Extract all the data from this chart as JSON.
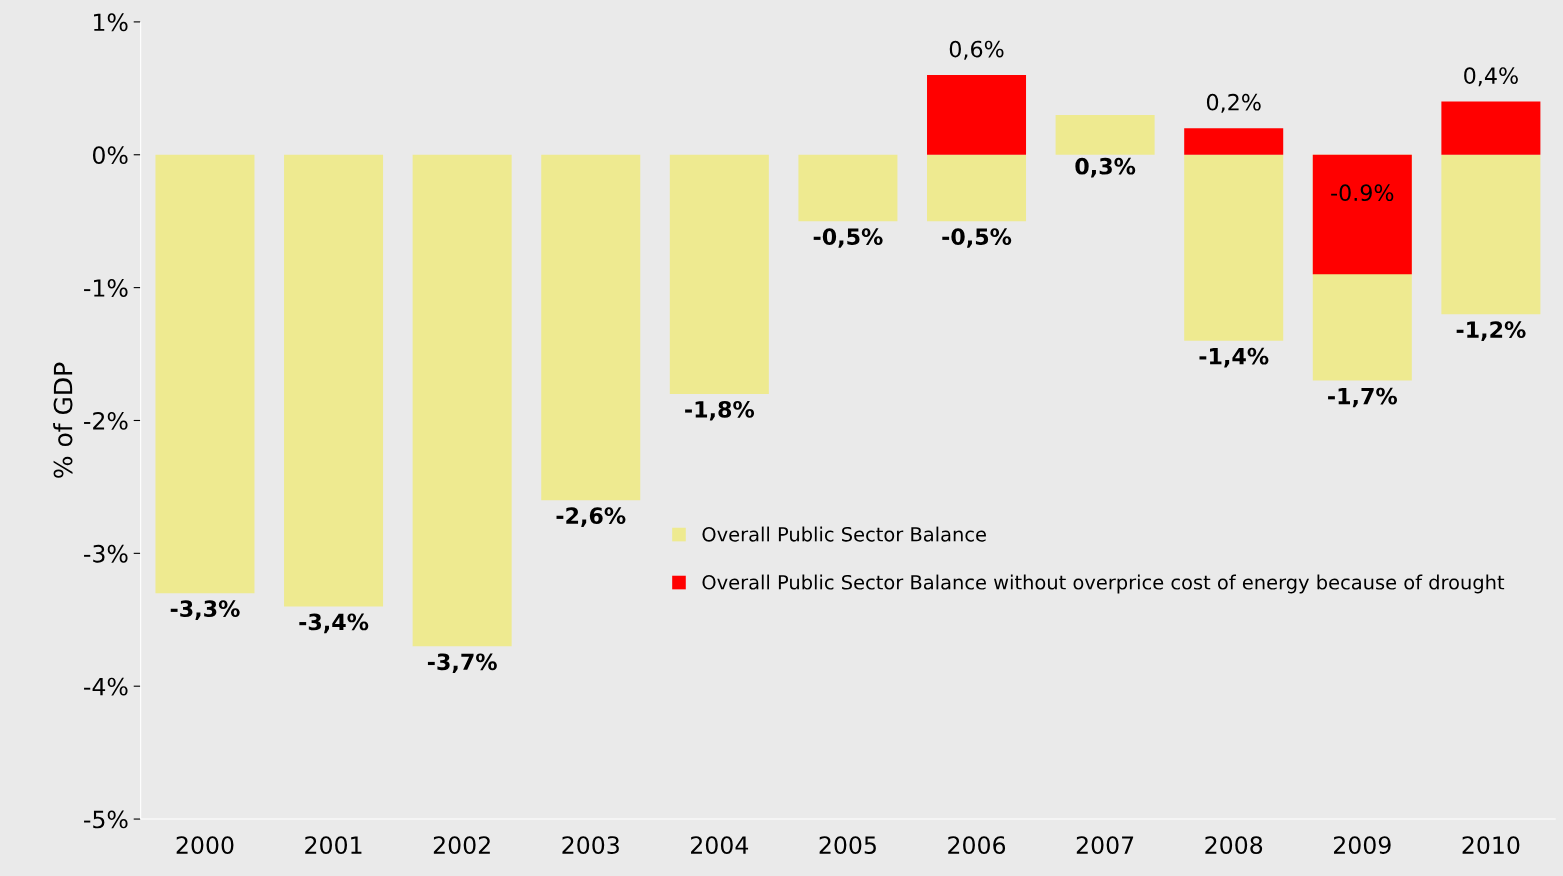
{
  "chart_data": {
    "type": "bar",
    "ylabel": "% of GDP",
    "categories": [
      "2000",
      "2001",
      "2002",
      "2003",
      "2004",
      "2005",
      "2006",
      "2007",
      "2008",
      "2009",
      "2010"
    ],
    "series": [
      {
        "name": "Overall Public Sector Balance",
        "color": "#eeea90",
        "values": [
          -3.3,
          -3.4,
          -3.7,
          -2.6,
          -1.8,
          -0.5,
          -0.5,
          0.3,
          -1.4,
          -1.7,
          -1.2
        ],
        "value_labels": [
          "-3,3%",
          "-3,4%",
          "-3,7%",
          "-2,6%",
          "-1,8%",
          "-0,5%",
          "-0,5%",
          "0,3%",
          "-1,4%",
          "-1,7%",
          "-1,2%"
        ]
      },
      {
        "name": "Overall Public Sector Balance without overprice cost of energy because of drought",
        "color": "#ff0000",
        "values": [
          null,
          null,
          null,
          null,
          null,
          null,
          0.6,
          0.0,
          0.2,
          -0.9,
          0.4
        ],
        "value_labels": [
          null,
          null,
          null,
          null,
          null,
          null,
          "0,6%",
          null,
          "0,2%",
          "-0.9%",
          "0,4%"
        ]
      }
    ],
    "ylim": [
      -5,
      1
    ],
    "yticks": [
      {
        "value": -5,
        "label": "-5%"
      },
      {
        "value": -4,
        "label": "-4%"
      },
      {
        "value": -3,
        "label": "-3%"
      },
      {
        "value": -2,
        "label": "-2%"
      },
      {
        "value": -1,
        "label": "-1%"
      },
      {
        "value": 0,
        "label": "0%"
      },
      {
        "value": 1,
        "label": "1%"
      }
    ],
    "grid": false,
    "legend": "center"
  }
}
